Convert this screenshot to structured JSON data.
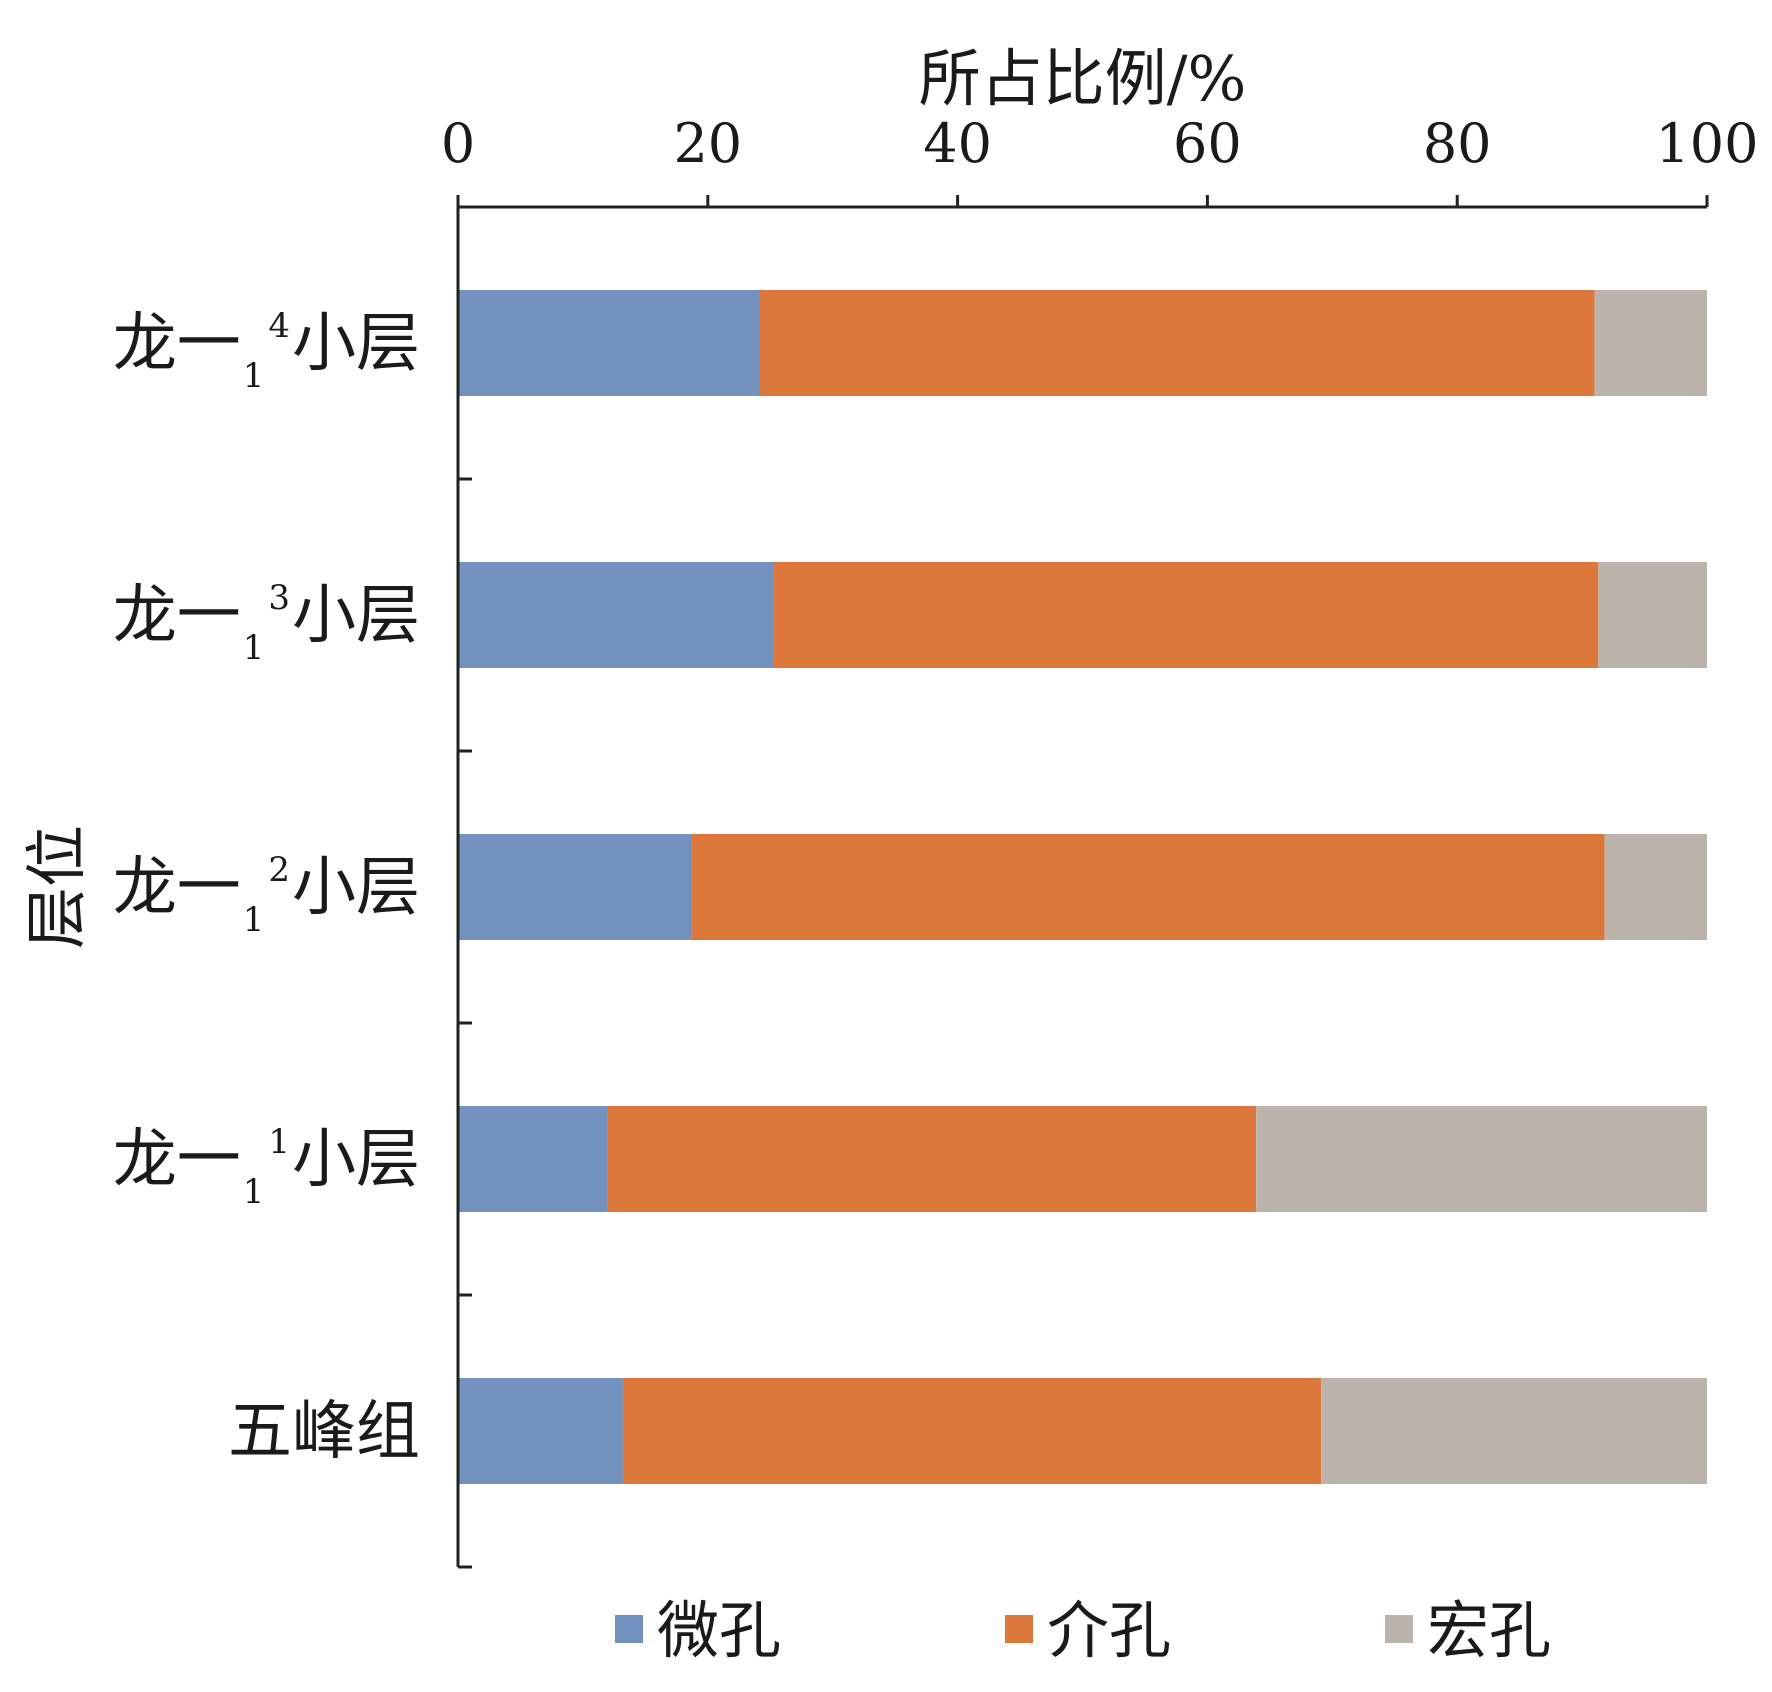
{
  "chart_data": {
    "type": "bar",
    "orientation": "horizontal",
    "stacked": true,
    "xlabel": "所占比例/%",
    "ylabel": "层位",
    "xlim": [
      0,
      100
    ],
    "xticks": [
      0,
      20,
      40,
      60,
      80,
      100
    ],
    "categories": [
      {
        "label": "龙一",
        "sub": "1",
        "sup": "4",
        "suffix": "小层"
      },
      {
        "label": "龙一",
        "sub": "1",
        "sup": "3",
        "suffix": "小层"
      },
      {
        "label": "龙一",
        "sub": "1",
        "sup": "2",
        "suffix": "小层"
      },
      {
        "label": "龙一",
        "sub": "1",
        "sup": "1",
        "suffix": "小层"
      },
      {
        "label": "五峰组",
        "sub": "",
        "sup": "",
        "suffix": ""
      }
    ],
    "series": [
      {
        "name": "微孔",
        "color": "#7291bd",
        "values": [
          24.1,
          25.3,
          18.7,
          12.0,
          13.2
        ]
      },
      {
        "name": "介孔",
        "color": "#dd783c",
        "values": [
          66.9,
          66.0,
          73.1,
          51.9,
          55.9
        ]
      },
      {
        "name": "宏孔",
        "color": "#bcb3aa",
        "values": [
          9.0,
          8.7,
          8.2,
          36.1,
          30.9
        ]
      }
    ],
    "legend_position": "bottom",
    "grid": false
  }
}
